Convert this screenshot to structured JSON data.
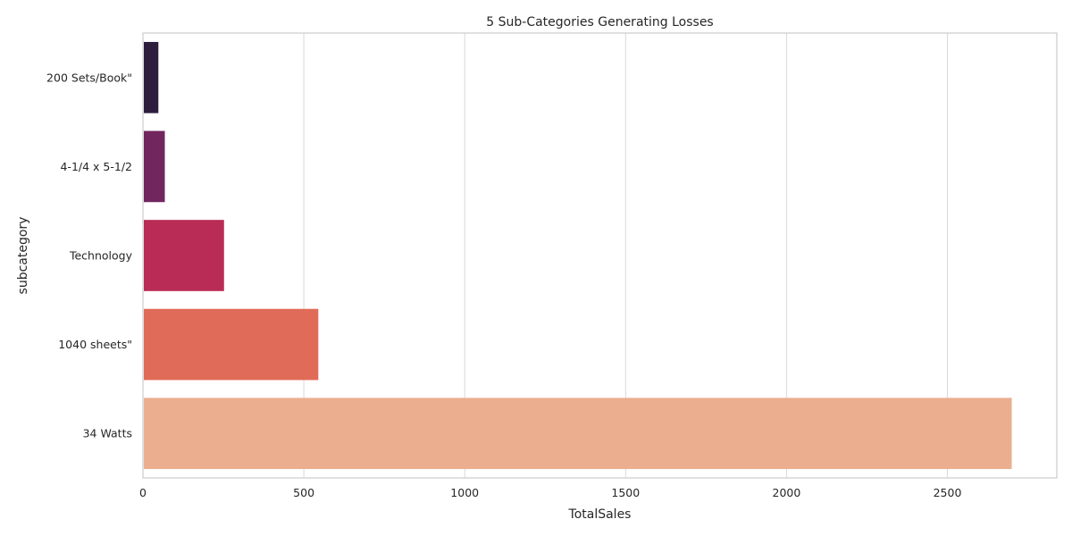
{
  "chart_data": {
    "type": "bar",
    "orientation": "horizontal",
    "title": "5 Sub-Categories Generating Losses",
    "xlabel": "TotalSales",
    "ylabel": "subcategory",
    "categories": [
      "200 Sets/Book\"",
      "4-1/4 x 5-1/2",
      "Technology",
      "1040 sheets\"",
      "34 Watts"
    ],
    "values": [
      48,
      68,
      252,
      545,
      2700
    ],
    "colors": [
      "#2d1e3e",
      "#71265e",
      "#b92c56",
      "#e06b58",
      "#ebaf8f"
    ],
    "xlim": [
      0,
      2840
    ],
    "xticks": [
      0,
      500,
      1000,
      1500,
      2000,
      2500
    ],
    "grid": "vertical"
  }
}
